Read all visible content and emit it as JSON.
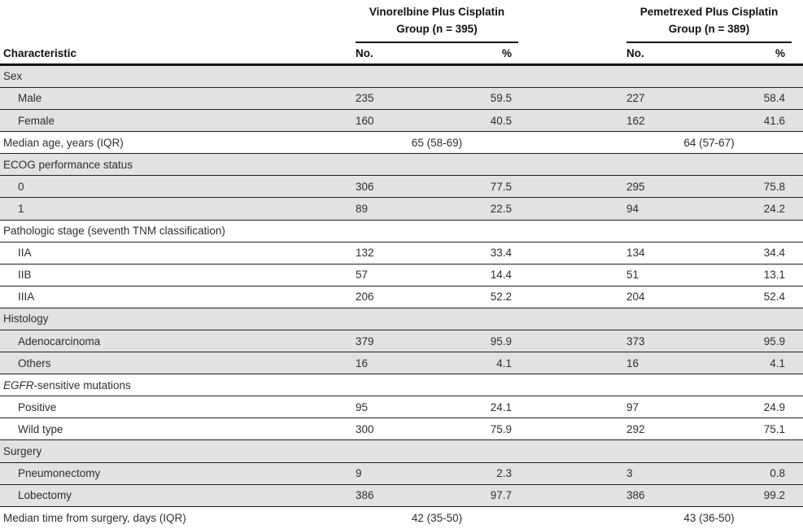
{
  "table": {
    "column_headers": {
      "characteristic": "Characteristic",
      "no": "No.",
      "pct": "%"
    },
    "groups": [
      {
        "title_line1": "Vinorelbine Plus Cisplatin",
        "title_line2": "Group (n = 395)"
      },
      {
        "title_line1": "Pemetrexed Plus Cisplatin",
        "title_line2": "Group (n = 389)"
      }
    ],
    "rows": [
      {
        "type": "section",
        "label": "Sex",
        "shade": "gray"
      },
      {
        "type": "data",
        "label": "Male",
        "indent": true,
        "g1_no": "235",
        "g1_pct": "59.5",
        "g2_no": "227",
        "g2_pct": "58.4",
        "shade": "gray"
      },
      {
        "type": "data",
        "label": "Female",
        "indent": true,
        "g1_no": "160",
        "g1_pct": "40.5",
        "g2_no": "162",
        "g2_pct": "41.6",
        "shade": "gray"
      },
      {
        "type": "median",
        "label": "Median age, years (IQR)",
        "g1_value": "65 (58-69)",
        "g2_value": "64 (57-67)",
        "shade": "white"
      },
      {
        "type": "section",
        "label": "ECOG performance status",
        "shade": "gray"
      },
      {
        "type": "data",
        "label": "0",
        "indent": true,
        "g1_no": "306",
        "g1_pct": "77.5",
        "g2_no": "295",
        "g2_pct": "75.8",
        "shade": "gray"
      },
      {
        "type": "data",
        "label": "1",
        "indent": true,
        "g1_no": "89",
        "g1_pct": "22.5",
        "g2_no": "94",
        "g2_pct": "24.2",
        "shade": "gray"
      },
      {
        "type": "section",
        "label": "Pathologic stage (seventh TNM classification)",
        "shade": "white"
      },
      {
        "type": "data",
        "label": "IIA",
        "indent": true,
        "g1_no": "132",
        "g1_pct": "33.4",
        "g2_no": "134",
        "g2_pct": "34.4",
        "shade": "white"
      },
      {
        "type": "data",
        "label": "IIB",
        "indent": true,
        "g1_no": "57",
        "g1_pct": "14.4",
        "g2_no": "51",
        "g2_pct": "13.1",
        "shade": "white"
      },
      {
        "type": "data",
        "label": "IIIA",
        "indent": true,
        "g1_no": "206",
        "g1_pct": "52.2",
        "g2_no": "204",
        "g2_pct": "52.4",
        "shade": "white"
      },
      {
        "type": "section",
        "label": "Histology",
        "shade": "gray"
      },
      {
        "type": "data",
        "label": "Adenocarcinoma",
        "indent": true,
        "g1_no": "379",
        "g1_pct": "95.9",
        "g2_no": "373",
        "g2_pct": "95.9",
        "shade": "gray"
      },
      {
        "type": "data",
        "label": "Others",
        "indent": true,
        "g1_no": "16",
        "g1_pct": "4.1",
        "g2_no": "16",
        "g2_pct": "4.1",
        "shade": "gray"
      },
      {
        "type": "section",
        "label_parts": [
          {
            "text": "EGFR",
            "italic": true
          },
          {
            "text": "-sensitive mutations",
            "italic": false
          }
        ],
        "shade": "white"
      },
      {
        "type": "data",
        "label": "Positive",
        "indent": true,
        "g1_no": "95",
        "g1_pct": "24.1",
        "g2_no": "97",
        "g2_pct": "24.9",
        "shade": "white"
      },
      {
        "type": "data",
        "label": "Wild type",
        "indent": true,
        "g1_no": "300",
        "g1_pct": "75.9",
        "g2_no": "292",
        "g2_pct": "75.1",
        "shade": "white"
      },
      {
        "type": "section",
        "label": "Surgery",
        "shade": "gray"
      },
      {
        "type": "data",
        "label": "Pneumonectomy",
        "indent": true,
        "g1_no": "9",
        "g1_pct": "2.3",
        "g2_no": "3",
        "g2_pct": "0.8",
        "shade": "gray"
      },
      {
        "type": "data",
        "label": "Lobectomy",
        "indent": true,
        "g1_no": "386",
        "g1_pct": "97.7",
        "g2_no": "386",
        "g2_pct": "99.2",
        "shade": "gray"
      },
      {
        "type": "median",
        "label": "Median time from surgery, days (IQR)",
        "g1_value": "42 (35-50)",
        "g2_value": "43 (36-50)",
        "shade": "white"
      }
    ],
    "colors": {
      "row_gray": "#e2e2e2",
      "row_white": "#ffffff",
      "rule": "#1f1f1f",
      "text": "#2e2e2e",
      "header_text": "#111111"
    }
  }
}
